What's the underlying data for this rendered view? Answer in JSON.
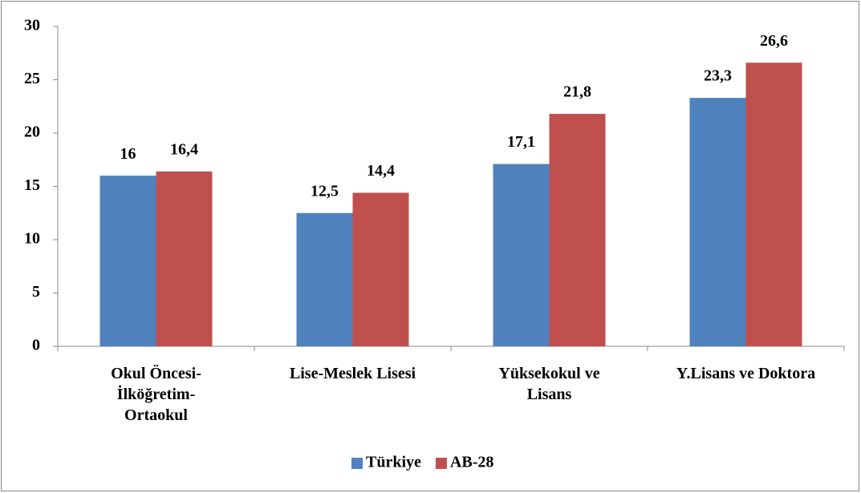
{
  "chart_data": {
    "type": "bar",
    "categories": [
      "Okul Öncesi-İlköğretim-Ortaokul",
      "Lise-Meslek Lisesi",
      "Yüksekokul ve Lisans",
      "Y.Lisans ve Doktora"
    ],
    "series": [
      {
        "name": "Türkiye",
        "color": "#4f81bd",
        "values": [
          16,
          12.5,
          17.1,
          23.3
        ],
        "value_labels": [
          "16",
          "12,5",
          "17,1",
          "23,3"
        ]
      },
      {
        "name": "AB-28",
        "color": "#c0504d",
        "values": [
          16.4,
          14.4,
          21.8,
          26.6
        ],
        "value_labels": [
          "16,4",
          "14,4",
          "21,8",
          "26,6"
        ]
      }
    ],
    "ylim": [
      0,
      30
    ],
    "yticks": [
      0,
      5,
      10,
      15,
      20,
      25,
      30
    ],
    "grid": false,
    "legend": "bottom"
  }
}
